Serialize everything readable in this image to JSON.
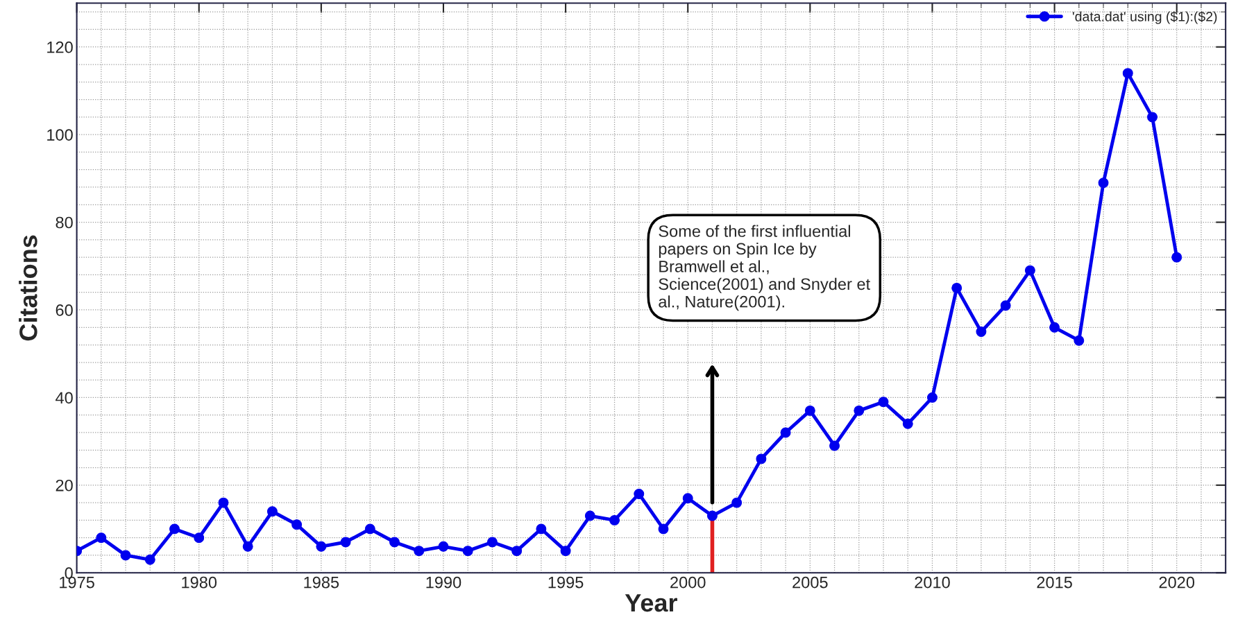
{
  "chart_data": {
    "type": "line",
    "xlabel": "Year",
    "ylabel": "Citations",
    "x": [
      1975,
      1976,
      1977,
      1978,
      1979,
      1980,
      1981,
      1982,
      1983,
      1984,
      1985,
      1986,
      1987,
      1988,
      1989,
      1990,
      1991,
      1992,
      1993,
      1994,
      1995,
      1996,
      1997,
      1998,
      1999,
      2000,
      2001,
      2002,
      2003,
      2004,
      2005,
      2006,
      2007,
      2008,
      2009,
      2010,
      2011,
      2012,
      2013,
      2014,
      2015,
      2016,
      2017,
      2018,
      2019,
      2020
    ],
    "series": [
      {
        "name": "'data.dat' using ($1):($2)",
        "color": "#0000ee",
        "values": [
          5,
          8,
          4,
          3,
          10,
          8,
          16,
          6,
          14,
          11,
          6,
          7,
          10,
          7,
          5,
          6,
          5,
          7,
          5,
          10,
          5,
          13,
          12,
          18,
          10,
          17,
          13,
          16,
          26,
          32,
          37,
          29,
          37,
          39,
          34,
          40,
          65,
          55,
          61,
          69,
          56,
          53,
          89,
          114,
          104,
          72
        ]
      }
    ],
    "xlim": [
      1975,
      2022
    ],
    "xticks": [
      1975,
      1980,
      1985,
      1990,
      1995,
      2000,
      2005,
      2010,
      2015,
      2020
    ],
    "ylim": [
      0,
      130
    ],
    "yticks": [
      0,
      20,
      40,
      60,
      80,
      100,
      120
    ],
    "grid": true,
    "legend": "top right",
    "marker": "circle",
    "line_style": "solid",
    "ref_lines": [
      {
        "axis": "x",
        "value": 2001,
        "color": "#e02020"
      }
    ],
    "annotations": [
      "Some of the first influential\npapers on Spin Ice by\nBramwell et al.,\nScience(2001) and Snyder et\nal., Nature(2001)."
    ]
  }
}
